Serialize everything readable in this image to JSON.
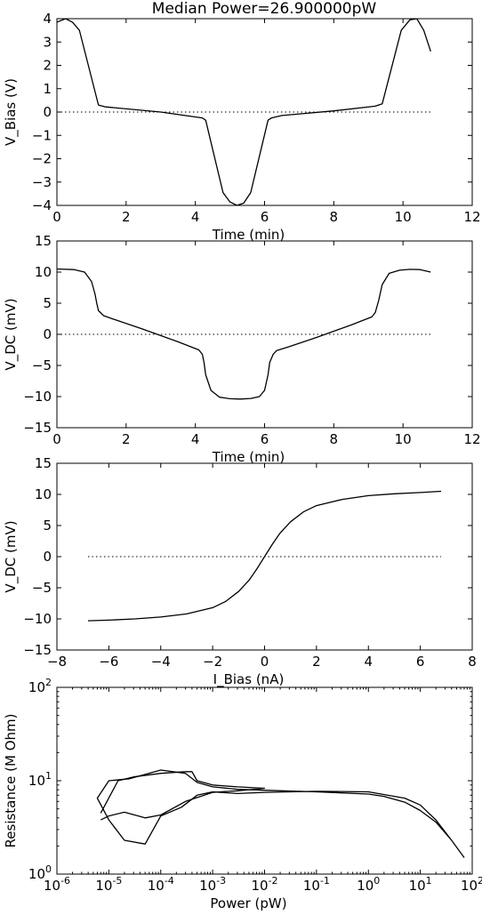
{
  "title": "Median Power=26.900000pW",
  "chart_data": [
    {
      "type": "line",
      "xlabel": "Time (min)",
      "ylabel": "V_Bias (V)",
      "xlim": [
        0,
        12
      ],
      "ylim": [
        -4,
        4
      ],
      "xticks": [
        0,
        2,
        4,
        6,
        8,
        10,
        12
      ],
      "yticks": [
        -4,
        -3,
        -2,
        -1,
        0,
        1,
        2,
        3,
        4
      ],
      "series": [
        {
          "x": [
            0,
            0.25,
            0.45,
            0.65,
            1.2,
            1.4,
            3.0,
            4.2,
            4.3,
            4.8,
            5.0,
            5.2,
            5.4,
            5.6,
            6.1,
            6.2,
            6.5,
            8.0,
            9.2,
            9.4,
            9.95,
            10.2,
            10.4,
            10.6,
            10.8
          ],
          "y": [
            3.85,
            4.0,
            3.85,
            3.5,
            0.3,
            0.22,
            0.0,
            -0.25,
            -0.35,
            -3.45,
            -3.85,
            -4.0,
            -3.9,
            -3.45,
            -0.35,
            -0.25,
            -0.15,
            0.05,
            0.25,
            0.35,
            3.5,
            3.95,
            4.0,
            3.5,
            2.6
          ]
        }
      ],
      "reference_line": {
        "y": 0,
        "x": [
          0,
          10.8
        ],
        "style": "dotted"
      }
    },
    {
      "type": "line",
      "xlabel": "Time (min)",
      "ylabel": "V_DC (mV)",
      "xlim": [
        0,
        12
      ],
      "ylim": [
        -15,
        15
      ],
      "xticks": [
        0,
        2,
        4,
        6,
        8,
        10,
        12
      ],
      "yticks": [
        -15,
        -10,
        -5,
        0,
        5,
        10,
        15
      ],
      "series": [
        {
          "x": [
            0,
            0.5,
            0.8,
            1.0,
            1.1,
            1.15,
            1.2,
            1.35,
            1.6,
            2.5,
            3.5,
            4.1,
            4.2,
            4.25,
            4.3,
            4.45,
            4.7,
            5.0,
            5.3,
            5.6,
            5.85,
            6.0,
            6.1,
            6.15,
            6.25,
            6.35,
            6.7,
            7.5,
            8.5,
            9.1,
            9.2,
            9.3,
            9.4,
            9.6,
            9.9,
            10.2,
            10.5,
            10.8
          ],
          "y": [
            10.5,
            10.4,
            10.0,
            8.5,
            6.5,
            5.0,
            3.8,
            3.0,
            2.5,
            0.8,
            -1.2,
            -2.5,
            -3.2,
            -4.5,
            -6.5,
            -9.0,
            -10.1,
            -10.35,
            -10.4,
            -10.3,
            -10.0,
            -9.0,
            -6.5,
            -4.5,
            -3.2,
            -2.6,
            -2.0,
            -0.5,
            1.5,
            2.8,
            3.5,
            5.5,
            8.0,
            9.8,
            10.3,
            10.45,
            10.4,
            10.0
          ]
        }
      ],
      "reference_line": {
        "y": 0,
        "x": [
          0,
          10.8
        ],
        "style": "dotted"
      }
    },
    {
      "type": "line",
      "xlabel": "I_Bias (nA)",
      "ylabel": "V_DC (mV)",
      "xlim": [
        -8,
        8
      ],
      "ylim": [
        -15,
        15
      ],
      "xticks": [
        -8,
        -6,
        -4,
        -2,
        0,
        2,
        4,
        6,
        8
      ],
      "yticks": [
        -15,
        -10,
        -5,
        0,
        5,
        10,
        15
      ],
      "series": [
        {
          "x": [
            -6.8,
            -6.0,
            -5.0,
            -4.0,
            -3.0,
            -2.0,
            -1.5,
            -1.0,
            -0.6,
            -0.3,
            0.0,
            0.3,
            0.6,
            1.0,
            1.5,
            2.0,
            3.0,
            4.0,
            5.0,
            6.0,
            6.8
          ],
          "y": [
            -10.3,
            -10.2,
            -10.0,
            -9.7,
            -9.2,
            -8.2,
            -7.2,
            -5.6,
            -3.8,
            -2.0,
            0.0,
            2.0,
            3.8,
            5.6,
            7.2,
            8.2,
            9.2,
            9.8,
            10.1,
            10.3,
            10.5
          ]
        }
      ],
      "reference_line": {
        "y": 0,
        "x": [
          -6.8,
          6.8
        ],
        "style": "dotted"
      }
    },
    {
      "type": "line",
      "xlabel": "Power (pW)",
      "ylabel": "Resistance (M Ohm)",
      "xscale": "log",
      "yscale": "log",
      "xlim": [
        1e-06,
        100
      ],
      "ylim": [
        1,
        100
      ],
      "xticks": [
        {
          "base": "10",
          "exp": "-6"
        },
        {
          "base": "10",
          "exp": "-5"
        },
        {
          "base": "10",
          "exp": "-4"
        },
        {
          "base": "10",
          "exp": "-3"
        },
        {
          "base": "10",
          "exp": "-2"
        },
        {
          "base": "10",
          "exp": "-1"
        },
        {
          "base": "10",
          "exp": "0"
        },
        {
          "base": "10",
          "exp": "1"
        },
        {
          "base": "10",
          "exp": "2"
        }
      ],
      "yticks": [
        {
          "base": "10",
          "exp": "0"
        },
        {
          "base": "10",
          "exp": "1"
        },
        {
          "base": "10",
          "exp": "2"
        }
      ],
      "series": [
        {
          "x": [
            70,
            40,
            20,
            10,
            5,
            2,
            1,
            0.1,
            0.01,
            0.003,
            0.001,
            0.0005,
            0.0003,
            0.0001,
            2.5e-05,
            1e-05,
            6e-06,
            1e-05,
            2e-05,
            5e-05,
            0.0001,
            0.00025,
            0.0005,
            0.001,
            0.003,
            0.01,
            0.1,
            1,
            5,
            10,
            20,
            40,
            70
          ],
          "y": [
            1.5,
            2.3,
            3.6,
            4.8,
            5.9,
            6.8,
            7.2,
            7.6,
            7.9,
            8.1,
            8.6,
            9.6,
            12.0,
            13.0,
            10.5,
            10.0,
            6.5,
            3.8,
            2.3,
            2.1,
            4.2,
            5.2,
            7.0,
            7.6,
            7.3,
            7.5,
            7.7,
            7.6,
            6.5,
            5.5,
            3.8,
            2.3,
            1.5
          ]
        },
        {
          "x": [
            7e-06,
            1.5e-05,
            3e-05,
            0.0001,
            0.0003,
            0.0004,
            0.0005,
            0.001,
            0.003,
            0.01,
            0.003,
            0.001,
            0.0003,
            0.0001,
            5e-05,
            2e-05,
            1e-05,
            7e-06
          ],
          "y": [
            4.5,
            10.0,
            11.0,
            12.0,
            12.5,
            12.5,
            10.0,
            9.0,
            8.6,
            8.3,
            7.8,
            7.5,
            6.0,
            4.3,
            4.0,
            4.6,
            4.2,
            3.8
          ]
        }
      ]
    }
  ]
}
